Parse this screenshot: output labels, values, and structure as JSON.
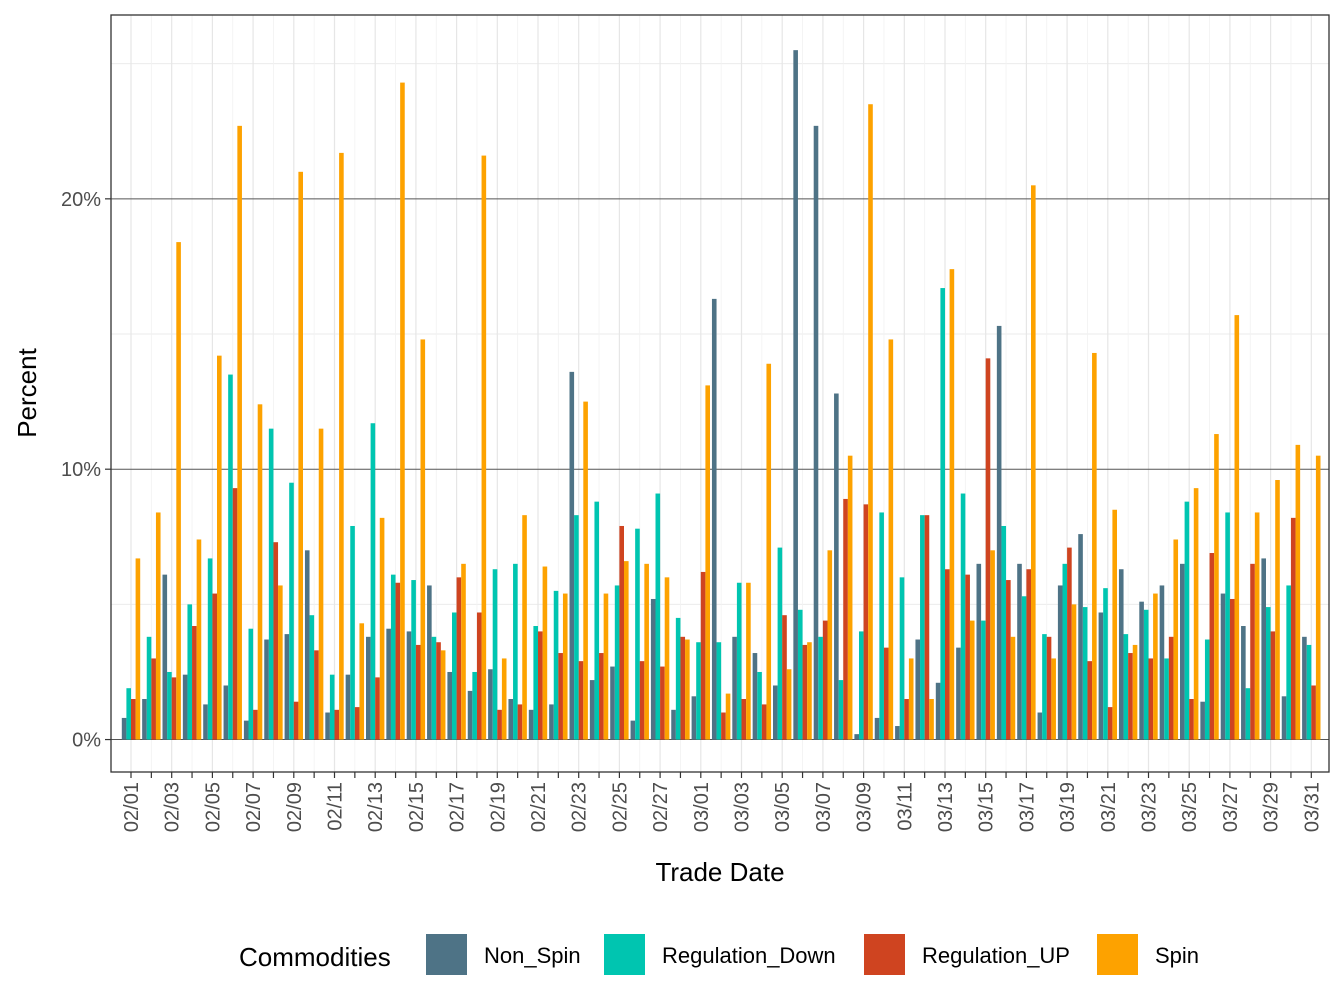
{
  "chart_data": {
    "type": "bar",
    "xlabel": "Trade Date",
    "ylabel": "Percent",
    "ylim": [
      -1.2,
      26.8
    ],
    "yticks": [
      0,
      10,
      20
    ],
    "ytick_labels": [
      "0%",
      "10%",
      "20%"
    ],
    "grid": true,
    "legend_title": "Commodities",
    "legend_position": "bottom",
    "categories": [
      "02/01",
      "02/02",
      "02/03",
      "02/04",
      "02/05",
      "02/06",
      "02/07",
      "02/08",
      "02/09",
      "02/10",
      "02/11",
      "02/12",
      "02/13",
      "02/14",
      "02/15",
      "02/16",
      "02/17",
      "02/18",
      "02/19",
      "02/20",
      "02/21",
      "02/22",
      "02/23",
      "02/24",
      "02/25",
      "02/26",
      "02/27",
      "02/28",
      "03/01",
      "03/02",
      "03/03",
      "03/04",
      "03/05",
      "03/06",
      "03/07",
      "03/08",
      "03/09",
      "03/10",
      "03/11",
      "03/12",
      "03/13",
      "03/14",
      "03/15",
      "03/16",
      "03/17",
      "03/18",
      "03/19",
      "03/20",
      "03/21",
      "03/22",
      "03/23",
      "03/24",
      "03/25",
      "03/26",
      "03/27",
      "03/28",
      "03/29",
      "03/30",
      "03/31"
    ],
    "tick_labels": [
      "02/01",
      "02/03",
      "02/05",
      "02/07",
      "02/09",
      "02/11",
      "02/13",
      "02/15",
      "02/17",
      "02/19",
      "02/21",
      "02/23",
      "02/25",
      "02/27",
      "03/01",
      "03/03",
      "03/05",
      "03/07",
      "03/09",
      "03/11",
      "03/13",
      "03/15",
      "03/17",
      "03/19",
      "03/21",
      "03/23",
      "03/25",
      "03/27",
      "03/29",
      "03/31"
    ],
    "series": [
      {
        "name": "Non_Spin",
        "color": "#4e7386",
        "values": [
          0.8,
          1.5,
          6.1,
          2.4,
          1.3,
          2.0,
          0.7,
          3.7,
          3.9,
          7.0,
          1.0,
          2.4,
          3.8,
          4.1,
          4.0,
          5.7,
          2.5,
          1.8,
          2.6,
          1.5,
          1.1,
          1.3,
          13.6,
          2.2,
          2.7,
          0.7,
          5.2,
          1.1,
          1.6,
          16.3,
          3.8,
          3.2,
          2.0,
          25.5,
          22.7,
          12.8,
          0.2,
          0.8,
          0.5,
          3.7,
          2.1,
          3.4,
          6.5,
          15.3,
          6.5,
          1.0,
          5.7,
          7.6,
          4.7,
          6.3,
          5.1,
          5.7,
          6.5,
          1.4,
          5.4,
          4.2,
          6.7,
          1.6,
          3.8
        ]
      },
      {
        "name": "Regulation_Down",
        "color": "#00c5b0",
        "values": [
          1.9,
          3.8,
          2.5,
          5.0,
          6.7,
          13.5,
          4.1,
          11.5,
          9.5,
          4.6,
          2.4,
          7.9,
          11.7,
          6.1,
          5.9,
          3.8,
          4.7,
          2.5,
          6.3,
          6.5,
          4.2,
          5.5,
          8.3,
          8.8,
          5.7,
          7.8,
          9.1,
          4.5,
          3.6,
          3.6,
          5.8,
          2.5,
          7.1,
          4.8,
          3.8,
          2.2,
          4.0,
          8.4,
          6.0,
          8.3,
          16.7,
          9.1,
          4.4,
          7.9,
          5.3,
          3.9,
          6.5,
          4.9,
          5.6,
          3.9,
          4.8,
          3.0,
          8.8,
          3.7,
          8.4,
          1.9,
          4.9,
          5.7,
          3.5
        ]
      },
      {
        "name": "Regulation_UP",
        "color": "#cf4420",
        "values": [
          1.5,
          3.0,
          2.3,
          4.2,
          5.4,
          9.3,
          1.1,
          7.3,
          1.4,
          3.3,
          1.1,
          1.2,
          2.3,
          5.8,
          3.5,
          3.6,
          6.0,
          4.7,
          1.1,
          1.3,
          4.0,
          3.2,
          2.9,
          3.2,
          7.9,
          2.9,
          2.7,
          3.8,
          6.2,
          1.0,
          1.5,
          1.3,
          4.6,
          3.5,
          4.4,
          8.9,
          8.7,
          3.4,
          1.5,
          8.3,
          6.3,
          6.1,
          14.1,
          5.9,
          6.3,
          3.8,
          7.1,
          2.9,
          1.2,
          3.2,
          3.0,
          3.8,
          1.5,
          6.9,
          5.2,
          6.5,
          4.0,
          8.2,
          2.0
        ]
      },
      {
        "name": "Spin",
        "color": "#fda200",
        "values": [
          6.7,
          8.4,
          18.4,
          7.4,
          14.2,
          22.7,
          12.4,
          5.7,
          21.0,
          11.5,
          21.7,
          4.3,
          8.2,
          24.3,
          14.8,
          3.3,
          6.5,
          21.6,
          3.0,
          8.3,
          6.4,
          5.4,
          12.5,
          5.4,
          6.6,
          6.5,
          6.0,
          3.7,
          13.1,
          1.7,
          5.8,
          13.9,
          2.6,
          3.6,
          7.0,
          10.5,
          23.5,
          14.8,
          3.0,
          1.5,
          17.4,
          4.4,
          7.0,
          3.8,
          20.5,
          3.0,
          5.0,
          14.3,
          8.5,
          3.5,
          5.4,
          7.4,
          9.3,
          11.3,
          15.7,
          8.4,
          9.6,
          10.9,
          10.5
        ]
      }
    ]
  }
}
